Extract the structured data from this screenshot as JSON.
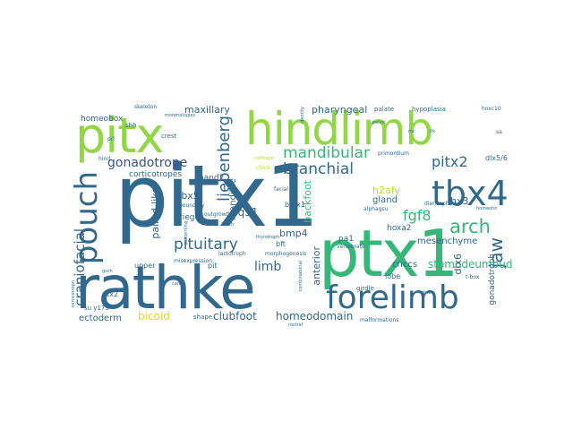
{
  "words": [
    {
      "text": "pitx1",
      "color": "#31688e"
    },
    {
      "text": "rathke",
      "color": "#31688e"
    },
    {
      "text": "ptx1",
      "color": "#35b779"
    },
    {
      "text": "hindlimb",
      "color": "#90d743"
    },
    {
      "text": "pitx",
      "color": "#90d743"
    },
    {
      "text": "forelimb",
      "color": "#31688e"
    },
    {
      "text": "tbx4",
      "color": "#31688e"
    },
    {
      "text": "pouch",
      "color": "#31688e"
    },
    {
      "text": "mandibular",
      "color": "#35b779"
    },
    {
      "text": "branchial",
      "color": "#31688e"
    },
    {
      "text": "liebenberg",
      "color": "#31688e"
    },
    {
      "text": "gonadotrope",
      "color": "#3b528b"
    },
    {
      "text": "pitx2",
      "color": "#31688e"
    },
    {
      "text": "arch",
      "color": "#35b779"
    },
    {
      "text": "jaw",
      "color": "#31688e"
    },
    {
      "text": "pituitary",
      "color": "#31688e"
    },
    {
      "text": "craniofacial",
      "color": "#31688e"
    },
    {
      "text": "fgf8",
      "color": "#35b779"
    },
    {
      "text": "limb",
      "color": "#31688e"
    },
    {
      "text": "stomodeumbuds",
      "color": "#35b779"
    },
    {
      "text": "homeodomain",
      "color": "#31688e"
    },
    {
      "text": "clubfoot",
      "color": "#31688e"
    },
    {
      "text": "bicoid",
      "color": "#e6d722"
    },
    {
      "text": "ectoderm",
      "color": "#31688e"
    },
    {
      "text": "maxillary",
      "color": "#31688e"
    },
    {
      "text": "pharyngeal",
      "color": "#31688e"
    },
    {
      "text": "5q31",
      "color": "#31688e"
    },
    {
      "text": "tbx5",
      "color": "#31688e"
    },
    {
      "text": "corticotropes",
      "color": "#31688e"
    },
    {
      "text": "paired-like",
      "color": "#31688e"
    },
    {
      "text": "lhx3",
      "color": "#31688e"
    },
    {
      "text": "bmp4",
      "color": "#31688e"
    },
    {
      "text": "mesenchyme",
      "color": "#31688e"
    },
    {
      "text": "anterior",
      "color": "#31688e"
    },
    {
      "text": "backfoot",
      "color": "#35b779"
    },
    {
      "text": "dlx6",
      "color": "#31688e"
    },
    {
      "text": "h2afy",
      "color": "#b5de2b"
    },
    {
      "text": "gland",
      "color": "#31688e"
    },
    {
      "text": "cnccs",
      "color": "#31688e"
    },
    {
      "text": "gonadotroph",
      "color": "#31688e"
    },
    {
      "text": "hoxa2",
      "color": "#31688e"
    },
    {
      "text": "homeobox",
      "color": "#31688e"
    },
    {
      "text": "mandible",
      "color": "#31688e"
    },
    {
      "text": "rieger",
      "color": "#31688e"
    },
    {
      "text": "hand2",
      "color": "#31688e"
    },
    {
      "text": "pa1",
      "color": "#31688e"
    },
    {
      "text": "bft",
      "color": "#31688e"
    },
    {
      "text": "upper",
      "color": "#31688e"
    },
    {
      "text": "pit",
      "color": "#31688e"
    },
    {
      "text": "ptx2",
      "color": "#31688e"
    },
    {
      "text": "barx1",
      "color": "#31688e"
    },
    {
      "text": "shape",
      "color": "#31688e"
    },
    {
      "text": "lobe",
      "color": "#31688e"
    },
    {
      "text": "girdle",
      "color": "#31688e"
    },
    {
      "text": "dlx5/6",
      "color": "#31688e"
    },
    {
      "text": "hypoplasia",
      "color": "#31688e"
    },
    {
      "text": "palate",
      "color": "#31688e"
    },
    {
      "text": "primordium",
      "color": "#31688e"
    },
    {
      "text": "skeleton",
      "color": "#31688e"
    },
    {
      "text": "shh",
      "color": "#31688e"
    },
    {
      "text": "crest",
      "color": "#31688e"
    },
    {
      "text": "boundary",
      "color": "#31688e"
    },
    {
      "text": "outgrowth",
      "color": "#31688e"
    },
    {
      "text": "facial",
      "color": "#31688e"
    },
    {
      "text": "chick",
      "color": "#b5de2b"
    },
    {
      "text": "lactotroph",
      "color": "#31688e"
    },
    {
      "text": "morphogenesis",
      "color": "#31688e"
    },
    {
      "text": "vertebrate",
      "color": "#31688e"
    },
    {
      "text": "malformations",
      "color": "#31688e"
    },
    {
      "text": "diencephalon",
      "color": "#31688e"
    },
    {
      "text": "alphagsu",
      "color": "#31688e"
    },
    {
      "text": "hoxc10",
      "color": "#31688e"
    },
    {
      "text": "t-box",
      "color": "#31688e"
    },
    {
      "text": "patterning",
      "color": "#31688e"
    },
    {
      "text": "misexpression",
      "color": "#31688e"
    },
    {
      "text": "combinatorial",
      "color": "#31688e"
    },
    {
      "text": "thyrotroph",
      "color": "#31688e"
    },
    {
      "text": "prl",
      "color": "#31688e"
    },
    {
      "text": "tooth",
      "color": "#31688e"
    },
    {
      "text": "identity",
      "color": "#31688e"
    },
    {
      "text": "homeotic",
      "color": "#31688e"
    },
    {
      "text": "morphologies",
      "color": "#31688e"
    },
    {
      "text": "cartilage",
      "color": "#b5de2b"
    },
    {
      "text": "corticotroph",
      "color": "#31688e"
    },
    {
      "text": "otx2",
      "color": "#31688e"
    },
    {
      "text": "rostral",
      "color": "#31688e"
    },
    {
      "text": "pelvic",
      "color": "#31688e"
    },
    {
      "text": "su y179",
      "color": "#31688e"
    },
    {
      "text": "hind",
      "color": "#31688e"
    },
    {
      "text": "gsch",
      "color": "#31688e"
    },
    {
      "text": "sa",
      "color": "#31688e"
    },
    {
      "text": "mc",
      "color": "#31688e"
    },
    {
      "text": "lfx",
      "color": "#31688e"
    },
    {
      "text": "carb",
      "color": "#31688e"
    }
  ]
}
